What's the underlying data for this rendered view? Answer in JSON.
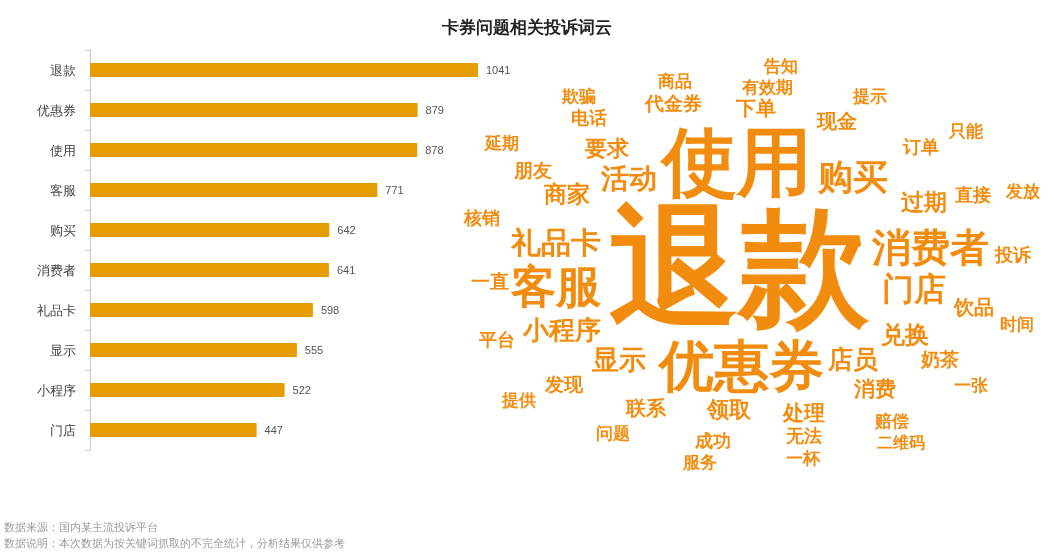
{
  "chart_data": [
    {
      "type": "bar",
      "orientation": "horizontal",
      "categories": [
        "退款",
        "优惠券",
        "使用",
        "客服",
        "购买",
        "消费者",
        "礼品卡",
        "显示",
        "小程序",
        "门店"
      ],
      "values": [
        1041,
        879,
        878,
        771,
        642,
        641,
        598,
        555,
        522,
        447
      ],
      "color": "#e59c00",
      "data_labels": true,
      "tick_labels": "y",
      "annotations": [
        "数据来源：国内某主流投诉平台",
        "数据说明：本次数据为按关键词抓取的不完全统计，分析结果仅供参考"
      ]
    },
    {
      "type": "other",
      "title": "卡券问题相关投诉词云",
      "color": "#f28c0f",
      "categories": [
        "退款",
        "使用",
        "优惠券",
        "客服",
        "消费者",
        "购买",
        "门店",
        "礼品卡",
        "活动",
        "显示",
        "小程序",
        "店员",
        "兑换",
        "商家",
        "过期",
        "领取",
        "要求",
        "消费",
        "处理",
        "联系",
        "下单",
        "现金",
        "饮品",
        "奶茶",
        "发现",
        "一直",
        "朋友",
        "代金券",
        "订单",
        "直接",
        "无法",
        "成功",
        "平台",
        "核销",
        "电话",
        "投诉",
        "有效期",
        "赔偿",
        "问题",
        "商品",
        "提示",
        "时间",
        "一张",
        "一杯",
        "服务",
        "提供",
        "延期",
        "欺骗",
        "告知",
        "只能",
        "发放",
        "二维码"
      ]
    }
  ]
}
